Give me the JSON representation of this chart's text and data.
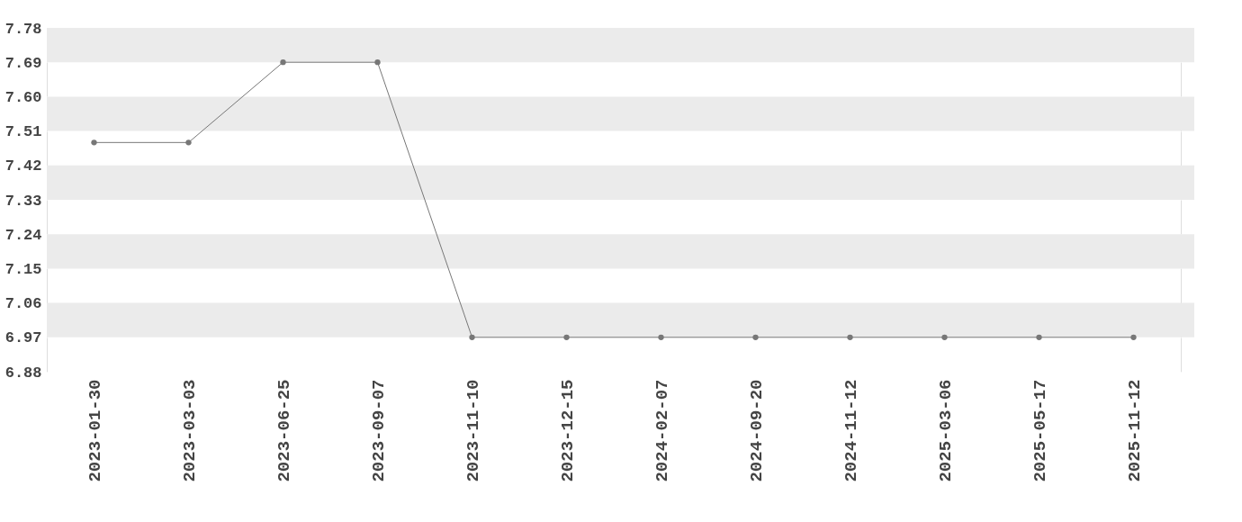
{
  "chart_data": {
    "type": "line",
    "categories": [
      "2023-01-30",
      "2023-03-03",
      "2023-06-25",
      "2023-09-07",
      "2023-11-10",
      "2023-12-15",
      "2024-02-07",
      "2024-09-20",
      "2024-11-12",
      "2025-03-06",
      "2025-05-17",
      "2025-11-12"
    ],
    "series": [
      {
        "color": "#777777",
        "values": [
          7.48,
          7.48,
          7.69,
          7.69,
          6.97,
          6.97,
          6.97,
          6.97,
          6.97,
          6.97,
          6.97,
          6.97
        ]
      }
    ],
    "ylim": [
      6.88,
      7.78
    ],
    "yticks": [
      6.88,
      6.97,
      7.06,
      7.15,
      7.24,
      7.33,
      7.42,
      7.51,
      {
        "value": 7.6,
        "label": "7.60"
      },
      7.69,
      7.78
    ],
    "grid": "y",
    "marker": "circle",
    "line_style": "solid"
  }
}
